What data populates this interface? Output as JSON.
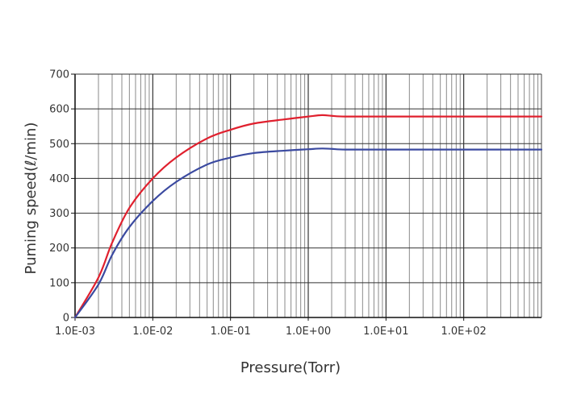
{
  "chart_data": {
    "type": "line",
    "title": "",
    "xlabel": "Pressure(Torr)",
    "ylabel": "Puming speed(ℓ/min)",
    "x_scale": "log",
    "xlim": [
      0.001,
      1000
    ],
    "ylim": [
      0,
      700
    ],
    "x_tick_labels": [
      {
        "value": 0.001,
        "label": "1.0E-03"
      },
      {
        "value": 0.01,
        "label": "1.0E-02"
      },
      {
        "value": 0.1,
        "label": "1.0E-01"
      },
      {
        "value": 1,
        "label": "1.0E+00"
      },
      {
        "value": 10,
        "label": "1.0E+01"
      },
      {
        "value": 100,
        "label": "1.0E+02"
      }
    ],
    "y_ticks": [
      0,
      100,
      200,
      300,
      400,
      500,
      600,
      700
    ],
    "grid": true,
    "legend": "none",
    "series": [
      {
        "color": "#e0202e",
        "points": [
          [
            0.001,
            0
          ],
          [
            0.002,
            115
          ],
          [
            0.003,
            215
          ],
          [
            0.005,
            315
          ],
          [
            0.01,
            400
          ],
          [
            0.02,
            460
          ],
          [
            0.05,
            515
          ],
          [
            0.1,
            540
          ],
          [
            0.2,
            558
          ],
          [
            0.5,
            570
          ],
          [
            1,
            578
          ],
          [
            1.5,
            582
          ],
          [
            2,
            580
          ],
          [
            3,
            578
          ],
          [
            10,
            578
          ],
          [
            100,
            578
          ],
          [
            1000,
            578
          ]
        ]
      },
      {
        "color": "#3b4aa0",
        "points": [
          [
            0.001,
            0
          ],
          [
            0.002,
            95
          ],
          [
            0.003,
            180
          ],
          [
            0.005,
            260
          ],
          [
            0.01,
            335
          ],
          [
            0.02,
            390
          ],
          [
            0.05,
            440
          ],
          [
            0.1,
            460
          ],
          [
            0.2,
            473
          ],
          [
            0.5,
            480
          ],
          [
            1,
            484
          ],
          [
            1.5,
            486
          ],
          [
            2,
            485
          ],
          [
            3,
            483
          ],
          [
            10,
            483
          ],
          [
            100,
            483
          ],
          [
            1000,
            483
          ]
        ]
      }
    ]
  }
}
